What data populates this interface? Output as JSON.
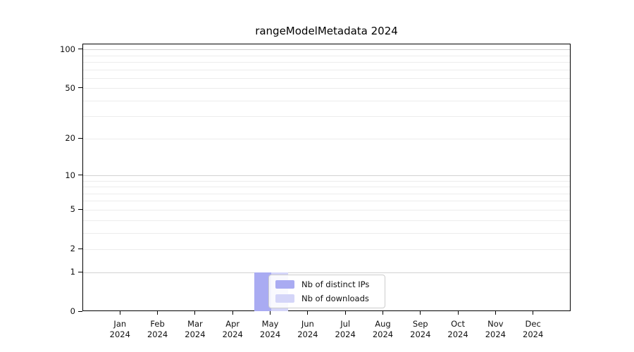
{
  "chart_data": {
    "type": "bar",
    "title": "rangeModelMetadata 2024",
    "x_categories": [
      "Jan",
      "Feb",
      "Mar",
      "Apr",
      "May",
      "Jun",
      "Jul",
      "Aug",
      "Sep",
      "Oct",
      "Nov",
      "Dec"
    ],
    "x_year_label": "2024",
    "series": [
      {
        "name": "Nb of distinct IPs",
        "color": "#a9abf2",
        "values": [
          0,
          0,
          0,
          0,
          1,
          0,
          0,
          0,
          0,
          0,
          0,
          0
        ]
      },
      {
        "name": "Nb of downloads",
        "color": "#d4d5f8",
        "values": [
          0,
          0,
          0,
          0,
          1,
          0,
          0,
          0,
          0,
          0,
          0,
          0
        ]
      }
    ],
    "y_scale": "log1p",
    "y_ticks": [
      0,
      1,
      2,
      5,
      10,
      20,
      50,
      100
    ],
    "y_max": 110,
    "grid_major_values": [
      1,
      10,
      100
    ],
    "grid_minor_values": [
      2,
      3,
      4,
      5,
      6,
      7,
      8,
      9,
      20,
      30,
      40,
      50,
      60,
      70,
      80,
      90
    ],
    "grid": "horizontal",
    "legend_position": "lower-center-inside",
    "colors": {
      "grid_major": "#d2d2d2",
      "grid_minor": "#ececec",
      "axis": "#000000",
      "legend_border": "#cccccc",
      "text": "#111111"
    }
  }
}
